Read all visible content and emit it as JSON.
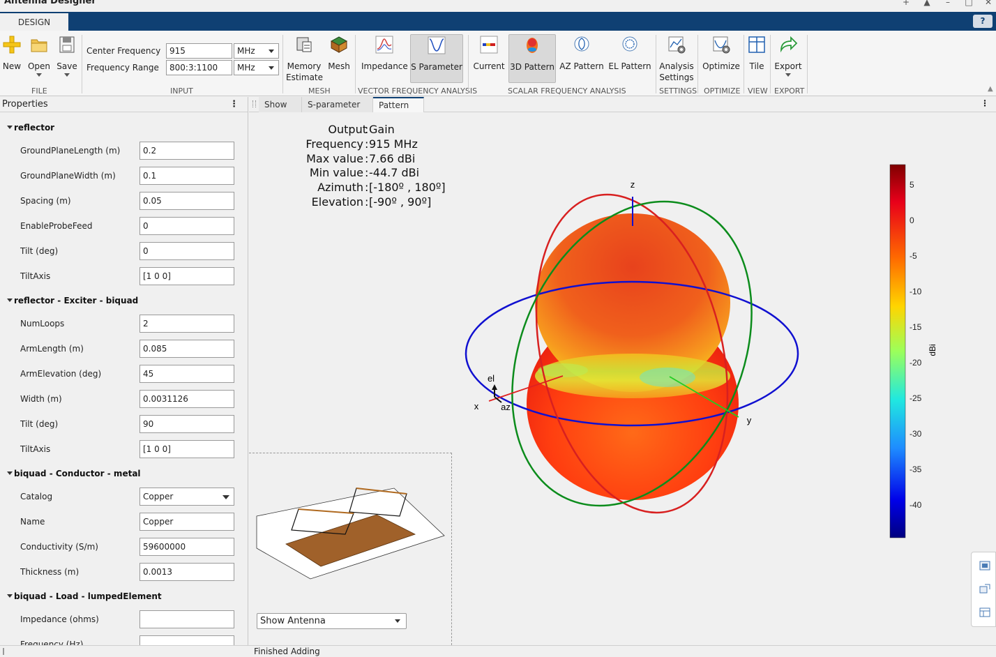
{
  "window": {
    "title": "Antenna Designer"
  },
  "tabs": {
    "design": "DESIGN",
    "help": "?"
  },
  "toolstrip": {
    "file": {
      "new": "New",
      "open": "Open",
      "save": "Save",
      "section": "FILE"
    },
    "input": {
      "center_frequency_label": "Center Frequency",
      "center_frequency_value": "915",
      "center_frequency_unit": "MHz",
      "frequency_range_label": "Frequency Range",
      "frequency_range_value": "800:3:1100",
      "frequency_range_unit": "MHz",
      "section": "INPUT"
    },
    "mesh": {
      "memory_estimate_1": "Memory",
      "memory_estimate_2": "Estimate",
      "mesh": "Mesh",
      "section": "MESH"
    },
    "vector": {
      "impedance": "Impedance",
      "s_parameter": "S Parameter",
      "section": "VECTOR FREQUENCY ANALYSIS"
    },
    "scalar": {
      "current": "Current",
      "pattern_3d": "3D Pattern",
      "az_pattern": "AZ Pattern",
      "el_pattern": "EL Pattern",
      "section": "SCALAR FREQUENCY ANALYSIS"
    },
    "settings": {
      "analysis_1": "Analysis",
      "analysis_2": "Settings",
      "section": "SETTINGS"
    },
    "optimize": {
      "optimize": "Optimize",
      "section": "OPTIMIZE"
    },
    "view": {
      "tile": "Tile",
      "section": "VIEW"
    },
    "export": {
      "export": "Export",
      "section": "EXPORT"
    }
  },
  "properties": {
    "title": "Properties",
    "groups": [
      {
        "name": "reflector",
        "rows": [
          {
            "label": "GroundPlaneLength (m)",
            "value": "0.2"
          },
          {
            "label": "GroundPlaneWidth (m)",
            "value": "0.1"
          },
          {
            "label": "Spacing (m)",
            "value": "0.05"
          },
          {
            "label": "EnableProbeFeed",
            "value": "0"
          },
          {
            "label": "Tilt (deg)",
            "value": "0"
          },
          {
            "label": "TiltAxis",
            "value": "[1 0 0]"
          }
        ]
      },
      {
        "name": "reflector - Exciter - biquad",
        "rows": [
          {
            "label": "NumLoops",
            "value": "2"
          },
          {
            "label": "ArmLength (m)",
            "value": "0.085"
          },
          {
            "label": "ArmElevation (deg)",
            "value": "45"
          },
          {
            "label": "Width (m)",
            "value": "0.0031126"
          },
          {
            "label": "Tilt (deg)",
            "value": "90"
          },
          {
            "label": "TiltAxis",
            "value": "[1 0 0]"
          }
        ]
      },
      {
        "name": "biquad - Conductor - metal",
        "rows": [
          {
            "label": "Catalog",
            "value": "Copper"
          },
          {
            "label": "Name",
            "value": "Copper"
          },
          {
            "label": "Conductivity (S/m)",
            "value": "59600000"
          },
          {
            "label": "Thickness (m)",
            "value": "0.0013"
          }
        ]
      },
      {
        "name": "biquad - Load - lumpedElement",
        "rows": [
          {
            "label": "Impedance (ohms)",
            "value": ""
          },
          {
            "label": "Frequency (Hz)",
            "value": ""
          }
        ]
      }
    ]
  },
  "document": {
    "tabs": [
      "Show",
      "S-parameter",
      "Pattern"
    ],
    "selected_tab": "Pattern",
    "info": [
      {
        "key": "Output",
        "value": "Gain"
      },
      {
        "key": "Frequency",
        "value": "915 MHz"
      },
      {
        "key": "Max value",
        "value": "7.66 dBi"
      },
      {
        "key": "Min value",
        "value": "-44.7 dBi"
      },
      {
        "key": "Azimuth",
        "value": "[-180º , 180º]"
      },
      {
        "key": "Elevation",
        "value": "[-90º , 90º]"
      }
    ],
    "axes": {
      "x": "x",
      "y": "y",
      "z": "z",
      "el": "el",
      "az": "az"
    },
    "colorbar": {
      "label": "dBi",
      "ticks": [
        "5",
        "0",
        "-5",
        "-10",
        "-15",
        "-20",
        "-25",
        "-30",
        "-35",
        "-40"
      ]
    },
    "show_select": "Show Antenna"
  },
  "status": "Finished Adding",
  "colors": {
    "brand_blue": "#0f4073",
    "plane_copper": "#a0612a"
  }
}
